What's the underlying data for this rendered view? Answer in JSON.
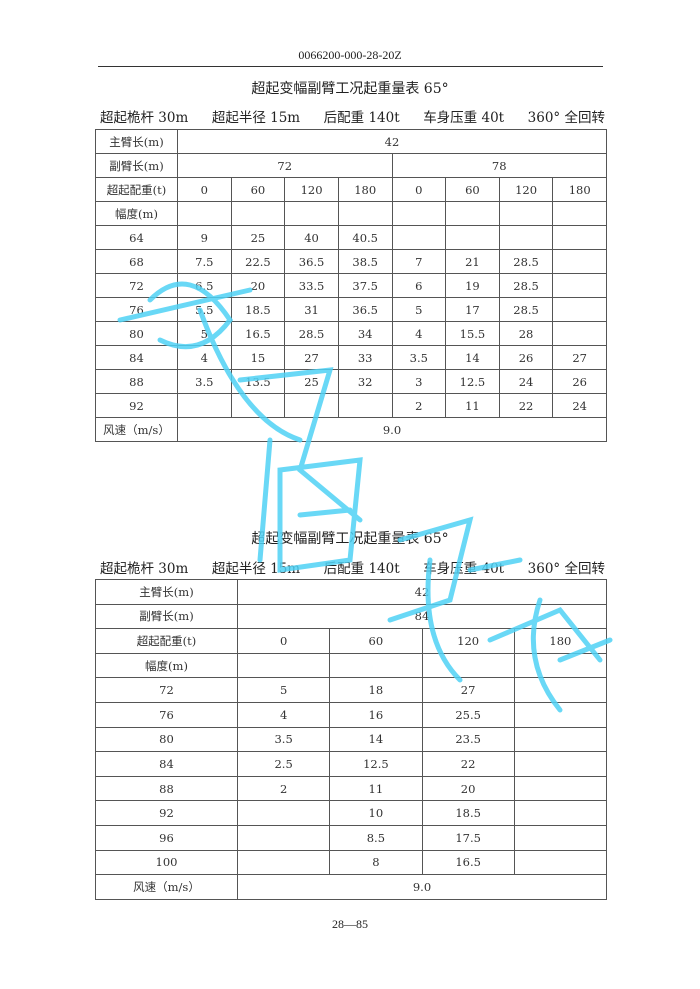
{
  "header": {
    "doc_code": "0066200-000-28-20Z"
  },
  "footer": {
    "page": "28—85"
  },
  "watermark": {
    "color": "#4fd2f5"
  },
  "table1": {
    "title": "超起变幅副臂工况起重量表 65°",
    "specs": [
      "超起桅杆 30m",
      "超起半径 15m",
      "后配重 140t",
      "车身压重 40t",
      "360° 全回转"
    ],
    "main_boom_label": "主臂长(m)",
    "main_boom": "42",
    "jib_label": "副臂长(m)",
    "jibs": [
      "72",
      "78"
    ],
    "counterweight_label": "超起配重(t)",
    "counterweights": [
      "0",
      "60",
      "120",
      "180",
      "0",
      "60",
      "120",
      "180"
    ],
    "radius_label": "幅度(m)",
    "rows": [
      [
        "64",
        "9",
        "25",
        "40",
        "40.5",
        "",
        "",
        "",
        ""
      ],
      [
        "68",
        "7.5",
        "22.5",
        "36.5",
        "38.5",
        "7",
        "21",
        "28.5",
        ""
      ],
      [
        "72",
        "6.5",
        "20",
        "33.5",
        "37.5",
        "6",
        "19",
        "28.5",
        ""
      ],
      [
        "76",
        "5.5",
        "18.5",
        "31",
        "36.5",
        "5",
        "17",
        "28.5",
        ""
      ],
      [
        "80",
        "5",
        "16.5",
        "28.5",
        "34",
        "4",
        "15.5",
        "28",
        ""
      ],
      [
        "84",
        "4",
        "15",
        "27",
        "33",
        "3.5",
        "14",
        "26",
        "27"
      ],
      [
        "88",
        "3.5",
        "13.5",
        "25",
        "32",
        "3",
        "12.5",
        "24",
        "26"
      ],
      [
        "92",
        "",
        "",
        "",
        "",
        "2",
        "11",
        "22",
        "24"
      ]
    ],
    "wind_label": "风速（m/s）",
    "wind": "9.0"
  },
  "table2": {
    "title": "超起变幅副臂工况起重量表 65°",
    "specs": [
      "超起桅杆 30m",
      "超起半径 15m",
      "后配重 140t",
      "车身压重 40t",
      "360° 全回转"
    ],
    "main_boom_label": "主臂长(m)",
    "main_boom": "42",
    "jib_label": "副臂长(m)",
    "jib": "84",
    "counterweight_label": "超起配重(t)",
    "counterweights": [
      "0",
      "60",
      "120",
      "180"
    ],
    "radius_label": "幅度(m)",
    "rows": [
      [
        "72",
        "5",
        "18",
        "27",
        ""
      ],
      [
        "76",
        "4",
        "16",
        "25.5",
        ""
      ],
      [
        "80",
        "3.5",
        "14",
        "23.5",
        ""
      ],
      [
        "84",
        "2.5",
        "12.5",
        "22",
        ""
      ],
      [
        "88",
        "2",
        "11",
        "20",
        ""
      ],
      [
        "92",
        "",
        "10",
        "18.5",
        ""
      ],
      [
        "96",
        "",
        "8.5",
        "17.5",
        ""
      ],
      [
        "100",
        "",
        "8",
        "16.5",
        ""
      ]
    ],
    "wind_label": "风速（m/s）",
    "wind": "9.0"
  }
}
